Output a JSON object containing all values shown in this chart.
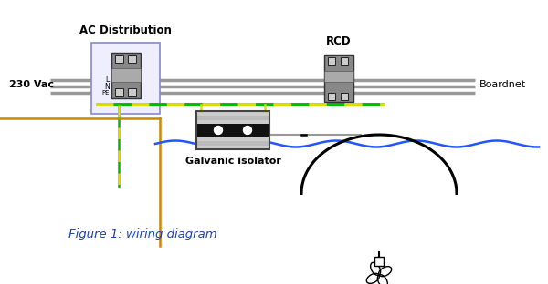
{
  "title": "AC Distribution",
  "rcd_label": "RCD",
  "boardnet_label": "Boardnet",
  "vac_label": "230 Vac",
  "galvanic_label": "Galvanic isolator",
  "figure_label": "Figure 1: wiring diagram",
  "wire_brown": "#cc8800",
  "wire_green": "#00bb00",
  "wire_yellow": "#dddd00",
  "wire_blue": "#2255ff",
  "wire_black": "#111111",
  "bus_color": "#999999",
  "fig_width": 6.0,
  "fig_height": 3.12,
  "dpi": 100
}
